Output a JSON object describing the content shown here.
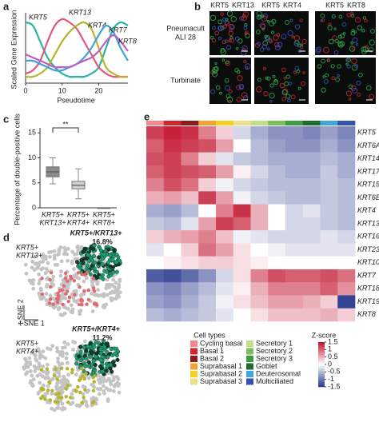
{
  "panel_labels": {
    "a": "a",
    "b": "b",
    "c": "c",
    "d": "d",
    "e": "e"
  },
  "chart_data": [
    {
      "type": "line",
      "xlabel": "Pseudotime",
      "ylabel": "Scaled Gene Expression",
      "x": [
        0,
        2,
        4,
        6,
        8,
        10,
        12,
        14,
        16,
        18,
        20,
        22,
        24,
        26,
        28
      ],
      "xlim": [
        0,
        28
      ],
      "xticks": [
        0,
        10,
        20
      ],
      "ylim": [
        0,
        1
      ],
      "series": [
        {
          "name": "KRT5",
          "color": "#27b5a0",
          "values": [
            0.9,
            0.85,
            0.6,
            0.35,
            0.2,
            0.1,
            0.05,
            0.05,
            0.05,
            0.1,
            0.2,
            0.5,
            0.8,
            0.9,
            0.85
          ]
        },
        {
          "name": "KRT13",
          "color": "#e3587a",
          "values": [
            0.1,
            0.15,
            0.3,
            0.6,
            0.85,
            0.95,
            0.9,
            0.8,
            0.6,
            0.4,
            0.2,
            0.1,
            0.05,
            0.05,
            0.05
          ]
        },
        {
          "name": "KRT4",
          "color": "#b5b52a",
          "values": [
            0.05,
            0.05,
            0.1,
            0.2,
            0.4,
            0.6,
            0.75,
            0.85,
            0.9,
            0.8,
            0.5,
            0.2,
            0.1,
            0.05,
            0.05
          ]
        },
        {
          "name": "KRT7",
          "color": "#3fa3d6",
          "values": [
            0.3,
            0.3,
            0.25,
            0.2,
            0.15,
            0.15,
            0.2,
            0.25,
            0.35,
            0.5,
            0.7,
            0.85,
            0.75,
            0.5,
            0.3
          ]
        },
        {
          "name": "KRT8",
          "color": "#c05cc8",
          "values": [
            0.4,
            0.35,
            0.3,
            0.25,
            0.2,
            0.2,
            0.2,
            0.25,
            0.3,
            0.35,
            0.45,
            0.6,
            0.7,
            0.6,
            0.45
          ]
        }
      ]
    },
    {
      "type": "box",
      "ylabel": "Percentage of double-positive cells",
      "categories": [
        [
          "KRT5+",
          "KRT13+"
        ],
        [
          "KRT5+",
          "KRT4+"
        ],
        [
          "KRT5+",
          "KRT8+"
        ]
      ],
      "ylim": [
        0,
        16
      ],
      "yticks": [
        0,
        5,
        10,
        15
      ],
      "colors": [
        "#8c8c8c",
        "#d0d0d0",
        "#d0d0d0"
      ],
      "boxes": [
        {
          "min": 4.8,
          "q1": 6.2,
          "median": 7.2,
          "q3": 8.2,
          "max": 10
        },
        {
          "min": 1.8,
          "q1": 3.8,
          "median": 4.5,
          "q3": 5.3,
          "max": 7.8
        },
        {
          "min": 0,
          "q1": 0,
          "median": 0,
          "q3": 0,
          "max": 0
        }
      ],
      "annotation": "**"
    },
    {
      "type": "heatmap",
      "rows": [
        "KRT5",
        "KRT6A",
        "KRT14",
        "KRT17",
        "KRT15",
        "KRT6B",
        "KRT4",
        "KRT13",
        "KRT16",
        "KRT23",
        "KRT10",
        "KRT7",
        "KRT18",
        "KRT19",
        "KRT8"
      ],
      "categories": [
        "Cycling basal",
        "Basal 1",
        "Basal 2",
        "Suprabasal 1",
        "Suprabasal 2",
        "Suprabasal 3",
        "Secretory 1",
        "Secretory 2",
        "Secretory 3",
        "Goblet",
        "Deuterosomal",
        "Multiciliated"
      ],
      "category_colors": [
        "#f2898e",
        "#d3262b",
        "#8e1b1b",
        "#f2a332",
        "#f5cf22",
        "#eee08a",
        "#bfe08a",
        "#7cc05e",
        "#3c9c44",
        "#1f6b31",
        "#44a5da",
        "#3152b0"
      ],
      "legend_title": "Cell types",
      "colorbar_title": "Z-score",
      "zlim": [
        -1.5,
        1.5
      ],
      "zticks": [
        1.5,
        1,
        0.5,
        0,
        -0.5,
        -1,
        -1.5
      ],
      "colormap": [
        "#26358c",
        "#ffffff",
        "#c2102c"
      ],
      "values": [
        [
          1.2,
          1.4,
          1.3,
          0.8,
          0.3,
          -0.3,
          -0.6,
          -0.8,
          -0.8,
          -0.9,
          -0.7,
          -0.9
        ],
        [
          1,
          1.3,
          1.2,
          1.1,
          0.6,
          0,
          -0.5,
          -0.7,
          -0.8,
          -0.8,
          -0.6,
          -0.8
        ],
        [
          1.1,
          1.2,
          0.8,
          0.3,
          -0.2,
          -0.4,
          -0.5,
          -0.6,
          -0.6,
          -0.6,
          -0.5,
          -0.6
        ],
        [
          1,
          1.2,
          1.1,
          1,
          0.6,
          0.1,
          -0.3,
          -0.5,
          -0.6,
          -0.6,
          -0.4,
          -0.6
        ],
        [
          0.8,
          1.1,
          0.9,
          0.3,
          -0.1,
          -0.3,
          -0.4,
          -0.5,
          -0.5,
          -0.5,
          -0.4,
          -0.5
        ],
        [
          0.5,
          0.6,
          0.4,
          1.2,
          0.6,
          -0.1,
          -0.3,
          -0.4,
          -0.5,
          -0.5,
          -0.4,
          -0.5
        ],
        [
          -0.6,
          -0.7,
          -0.5,
          0,
          0.8,
          1.3,
          0.5,
          0,
          -0.3,
          -0.2,
          -0.4,
          -0.5
        ],
        [
          -0.4,
          -0.5,
          -0.2,
          0.6,
          1.2,
          1,
          0.5,
          0,
          -0.3,
          -0.3,
          -0.4,
          -0.5
        ],
        [
          0.3,
          0.5,
          0.6,
          0.8,
          0.4,
          -0.1,
          -0.2,
          -0.3,
          -0.3,
          -0.3,
          -0.2,
          -0.3
        ],
        [
          -0.2,
          0,
          0.3,
          0.9,
          0.6,
          0.2,
          0,
          -0.1,
          -0.2,
          -0.2,
          -0.2,
          -0.2
        ],
        [
          0,
          0.1,
          0.2,
          0.3,
          0.3,
          0.2,
          0.1,
          0,
          0,
          0,
          0,
          0
        ],
        [
          -1.2,
          -1.3,
          -1.1,
          -0.8,
          -0.3,
          0.2,
          0.8,
          1.1,
          1,
          1,
          1.1,
          0.9
        ],
        [
          -0.8,
          -0.9,
          -0.7,
          -0.5,
          -0.2,
          0.1,
          0.5,
          0.8,
          0.8,
          0.8,
          1,
          0.7
        ],
        [
          -0.7,
          -0.8,
          -0.6,
          -0.4,
          -0.1,
          0.2,
          0.4,
          0.6,
          0.6,
          0.5,
          0.3,
          -1.4
        ],
        [
          -0.5,
          -0.6,
          -0.5,
          -0.4,
          -0.2,
          0,
          0.2,
          0.4,
          0.4,
          0.4,
          0.5,
          0.3
        ]
      ]
    }
  ],
  "panel_b": {
    "columns": [
      [
        {
          "text": "KRT5",
          "color": "#1f9a45"
        },
        {
          "text": "KRT13",
          "color": "#e0303a"
        }
      ],
      [
        {
          "text": "KRT5",
          "color": "#1f9a45"
        },
        {
          "text": "KRT4",
          "color": "#e0303a"
        }
      ],
      [
        {
          "text": "KRT5",
          "color": "#1f9a45"
        },
        {
          "text": "KRT8",
          "color": "#e0303a"
        }
      ]
    ],
    "rows": [
      [
        "Pneumacult",
        "ALI 28"
      ],
      [
        "Turbinate"
      ]
    ]
  },
  "panel_d": {
    "axis_y": "t-SNE 2",
    "axis_x": "t-SNE 1",
    "plots": [
      {
        "labels": [
          {
            "text": "KRT5+",
            "color": "#1fa37a"
          },
          {
            "text": "KRT13+",
            "color": "#e06a70"
          }
        ],
        "pair": "KRT5+/KRT13+",
        "percent": "16.8%"
      },
      {
        "labels": [
          {
            "text": "KRT5+",
            "color": "#1fa37a"
          },
          {
            "text": "KRT4+",
            "color": "#b5b52a"
          }
        ],
        "pair": "KRT5+/KRT4+",
        "percent": "11.2%"
      }
    ]
  }
}
